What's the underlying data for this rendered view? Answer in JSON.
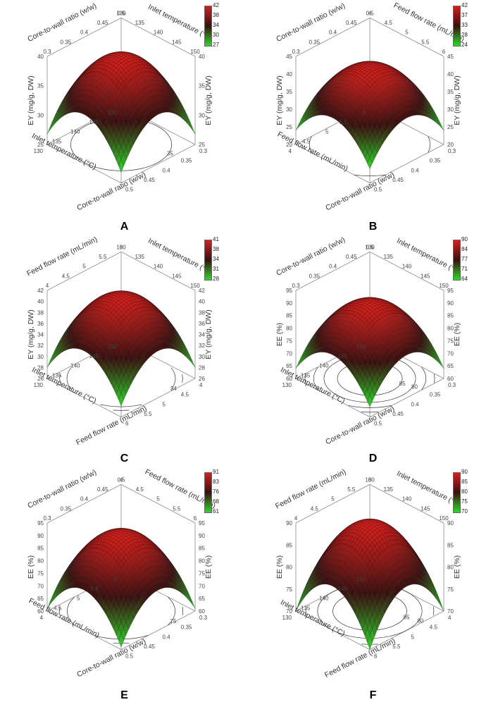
{
  "chart_data": [
    {
      "panel": "A",
      "type": "surface",
      "x_axis": {
        "label": "Inlet temperature (°C)",
        "ticks": [
          "130",
          "135",
          "140",
          "145",
          "150"
        ]
      },
      "y_axis": {
        "label": "Core-to-wall ratio (w/w)",
        "ticks": [
          "0.3",
          "0.35",
          "0.4",
          "0.45",
          "0.5"
        ]
      },
      "z_axis": {
        "label": "EY (mg/g, DW)",
        "ticks": [
          "25",
          "30",
          "35",
          "40"
        ]
      },
      "colorbar": [
        "42",
        "38",
        "34",
        "30",
        "27"
      ],
      "contours": [
        "30",
        "35"
      ],
      "z_peak": 42,
      "z_corner": 27
    },
    {
      "panel": "B",
      "type": "surface",
      "x_axis": {
        "label": "Feed flow rate (mL/min)",
        "ticks": [
          "4",
          "4.5",
          "5",
          "5.5",
          "6"
        ]
      },
      "y_axis": {
        "label": "Core-to-wall ratio (w/w)",
        "ticks": [
          "0.3",
          "0.35",
          "0.4",
          "0.45",
          "0.5"
        ]
      },
      "z_axis": {
        "label": "EY (mg/g, DW)",
        "ticks": [
          "20",
          "25",
          "30",
          "35",
          "40",
          "45"
        ]
      },
      "colorbar": [
        "42",
        "37",
        "33",
        "28",
        "24"
      ],
      "contours": [
        "25",
        "30"
      ],
      "z_peak": 42,
      "z_corner": 24
    },
    {
      "panel": "C",
      "type": "surface",
      "x_axis": {
        "label": "Inlet temperature (°C)",
        "ticks": [
          "130",
          "135",
          "140",
          "145",
          "150"
        ]
      },
      "y_axis": {
        "label": "Feed flow rate (mL/min)",
        "ticks": [
          "4",
          "4.5",
          "5",
          "5.5",
          "6"
        ]
      },
      "z_axis": {
        "label": "EY (mg/g, DW)",
        "ticks": [
          "26",
          "28",
          "30",
          "32",
          "34",
          "36",
          "38",
          "40",
          "42"
        ]
      },
      "colorbar": [
        "41",
        "38",
        "34",
        "31",
        "28"
      ],
      "contours": [
        "30",
        "32",
        "34"
      ],
      "z_peak": 41,
      "z_corner": 28
    },
    {
      "panel": "D",
      "type": "surface",
      "x_axis": {
        "label": "Inlet temperature (°C)",
        "ticks": [
          "130",
          "135",
          "140",
          "145",
          "150"
        ]
      },
      "y_axis": {
        "label": "Core-to-wall ratio (w/w)",
        "ticks": [
          "0.3",
          "0.35",
          "0.4",
          "0.45",
          "0.5"
        ]
      },
      "z_axis": {
        "label": "EE (%)",
        "ticks": [
          "60",
          "65",
          "70",
          "75",
          "80",
          "85",
          "90",
          "95"
        ]
      },
      "colorbar": [
        "90",
        "84",
        "77",
        "71",
        "64"
      ],
      "contours": [
        "65",
        "70",
        "75",
        "80",
        "85"
      ],
      "z_peak": 90,
      "z_corner": 64
    },
    {
      "panel": "E",
      "type": "surface",
      "x_axis": {
        "label": "Feed flow rate (mL/min)",
        "ticks": [
          "4",
          "4.5",
          "5",
          "5.5",
          "6"
        ]
      },
      "y_axis": {
        "label": "Core-to-wall ratio (w/w)",
        "ticks": [
          "0.3",
          "0.35",
          "0.4",
          "0.45",
          "0.5"
        ]
      },
      "z_axis": {
        "label": "EE (%)",
        "ticks": [
          "60",
          "65",
          "70",
          "75",
          "80",
          "85",
          "90",
          "95"
        ]
      },
      "colorbar": [
        "91",
        "83",
        "76",
        "68",
        "61"
      ],
      "contours": [
        "65",
        "70",
        "75"
      ],
      "z_peak": 91,
      "z_corner": 61
    },
    {
      "panel": "F",
      "type": "surface",
      "x_axis": {
        "label": "Inlet temperature (°C)",
        "ticks": [
          "130",
          "135",
          "140",
          "145",
          "150"
        ]
      },
      "y_axis": {
        "label": "Feed flow rate (mL/min)",
        "ticks": [
          "4",
          "4.5",
          "5",
          "5.5",
          "6"
        ]
      },
      "z_axis": {
        "label": "EE (%)",
        "ticks": [
          "70",
          "75",
          "80",
          "85",
          "90"
        ]
      },
      "colorbar": [
        "90",
        "85",
        "80",
        "75",
        "70"
      ],
      "contours": [
        "75",
        "80",
        "85"
      ],
      "z_peak": 90,
      "z_corner": 70
    }
  ],
  "colors": {
    "high": "#d4201c",
    "mid": "#3a1010",
    "low": "#2fd82a",
    "axis": "#8a8a8a",
    "contour": "#333333"
  }
}
